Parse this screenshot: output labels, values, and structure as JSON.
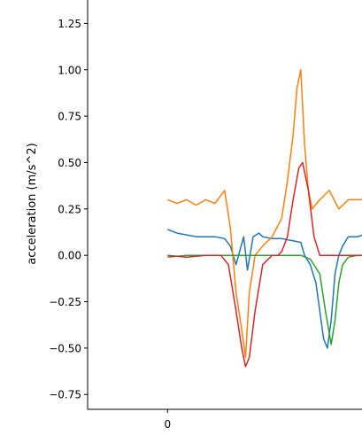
{
  "chart_data": {
    "type": "line",
    "title": "",
    "xlabel": "",
    "ylabel": "acceleration (m/s^2)",
    "xlim": [
      -0.42,
      1.05
    ],
    "ylim": [
      -0.83,
      1.4
    ],
    "grid": false,
    "legend": "none",
    "y_ticks": [
      -0.75,
      -0.5,
      -0.25,
      0.0,
      0.25,
      0.5,
      0.75,
      1.0,
      1.25
    ],
    "y_tick_labels": [
      "−0.75",
      "−0.50",
      "−0.25",
      "0.00",
      "0.25",
      "0.50",
      "0.75",
      "1.00",
      "1.25"
    ],
    "x_ticks": [
      0
    ],
    "x_tick_labels": [
      "0"
    ],
    "series": [
      {
        "color": "#1f77b4",
        "x": [
          0.0,
          0.05,
          0.1,
          0.15,
          0.2,
          0.25,
          0.3,
          0.33,
          0.36,
          0.4,
          0.42,
          0.45,
          0.48,
          0.5,
          0.55,
          0.6,
          0.65,
          0.7,
          0.72,
          0.75,
          0.78,
          0.8,
          0.82,
          0.84,
          0.86,
          0.88,
          0.9,
          0.92,
          0.95,
          1.0,
          1.05
        ],
        "y": [
          0.14,
          0.12,
          0.11,
          0.1,
          0.1,
          0.1,
          0.09,
          0.05,
          -0.05,
          0.1,
          -0.08,
          0.1,
          0.12,
          0.1,
          0.09,
          0.09,
          0.08,
          0.07,
          0.0,
          -0.05,
          -0.15,
          -0.3,
          -0.45,
          -0.5,
          -0.35,
          -0.1,
          0.0,
          0.05,
          0.1,
          0.1,
          0.12
        ]
      },
      {
        "color": "#ff7f0e",
        "x": [
          0.0,
          0.05,
          0.1,
          0.15,
          0.2,
          0.25,
          0.3,
          0.33,
          0.36,
          0.39,
          0.41,
          0.43,
          0.46,
          0.5,
          0.55,
          0.6,
          0.63,
          0.66,
          0.68,
          0.7,
          0.72,
          0.74,
          0.76,
          0.8,
          0.85,
          0.9,
          0.95,
          1.0,
          1.05
        ],
        "y": [
          0.3,
          0.28,
          0.3,
          0.27,
          0.3,
          0.28,
          0.35,
          0.15,
          -0.2,
          -0.4,
          -0.55,
          -0.2,
          0.0,
          0.05,
          0.1,
          0.2,
          0.4,
          0.65,
          0.9,
          1.0,
          0.6,
          0.35,
          0.25,
          0.3,
          0.35,
          0.25,
          0.3,
          0.3,
          0.3
        ]
      },
      {
        "color": "#2ca02c",
        "x": [
          0.0,
          0.1,
          0.2,
          0.3,
          0.4,
          0.5,
          0.6,
          0.7,
          0.75,
          0.8,
          0.83,
          0.86,
          0.88,
          0.9,
          0.92,
          0.95,
          1.0,
          1.05
        ],
        "y": [
          -0.01,
          0.0,
          0.0,
          0.0,
          0.0,
          0.0,
          0.0,
          0.0,
          -0.02,
          -0.1,
          -0.3,
          -0.48,
          -0.35,
          -0.15,
          -0.05,
          -0.01,
          0.0,
          0.0
        ]
      },
      {
        "color": "#d62728",
        "x": [
          0.0,
          0.1,
          0.2,
          0.28,
          0.32,
          0.36,
          0.39,
          0.41,
          0.43,
          0.46,
          0.5,
          0.55,
          0.58,
          0.6,
          0.63,
          0.66,
          0.69,
          0.71,
          0.74,
          0.77,
          0.8,
          0.85,
          0.9,
          0.95,
          1.0,
          1.05
        ],
        "y": [
          0.0,
          -0.01,
          0.0,
          0.0,
          -0.05,
          -0.3,
          -0.5,
          -0.6,
          -0.55,
          -0.3,
          -0.05,
          0.0,
          0.0,
          0.02,
          0.1,
          0.3,
          0.47,
          0.5,
          0.35,
          0.1,
          0.0,
          0.0,
          0.0,
          0.0,
          0.0,
          0.0
        ]
      }
    ]
  }
}
